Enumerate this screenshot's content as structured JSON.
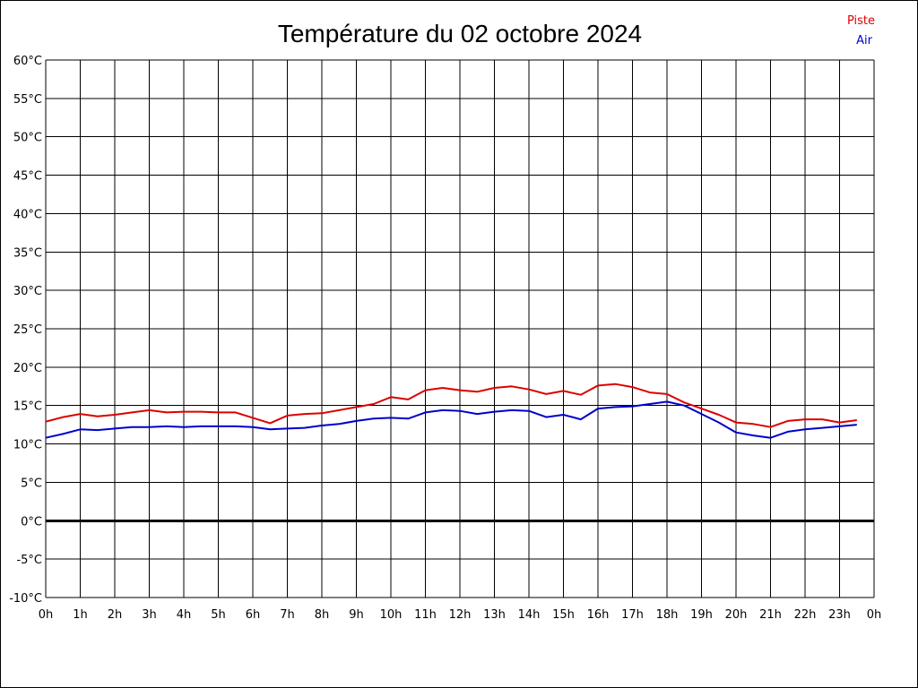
{
  "chart_data": {
    "type": "line",
    "title": "Température du 02 octobre 2024",
    "xlabel": "",
    "ylabel": "",
    "x_ticks": [
      "0h",
      "1h",
      "2h",
      "3h",
      "4h",
      "5h",
      "6h",
      "7h",
      "8h",
      "9h",
      "10h",
      "11h",
      "12h",
      "13h",
      "14h",
      "15h",
      "16h",
      "17h",
      "18h",
      "19h",
      "20h",
      "21h",
      "22h",
      "23h",
      "0h"
    ],
    "y_ticks": [
      "60°C",
      "55°C",
      "50°C",
      "45°C",
      "40°C",
      "35°C",
      "30°C",
      "25°C",
      "20°C",
      "15°C",
      "10°C",
      "5°C",
      "0°C",
      "-5°C",
      "-10°C"
    ],
    "xlim": [
      0,
      24
    ],
    "ylim": [
      -10,
      60
    ],
    "grid": true,
    "legend_position": "top-right",
    "series": [
      {
        "name": "Piste",
        "color": "#dd0000",
        "x": [
          0,
          0.5,
          1,
          1.5,
          2,
          2.5,
          3,
          3.5,
          4,
          4.5,
          5,
          5.5,
          6,
          6.5,
          7,
          7.5,
          8,
          8.5,
          9,
          9.5,
          10,
          10.5,
          11,
          11.5,
          12,
          12.5,
          13,
          13.5,
          14,
          14.5,
          15,
          15.5,
          16,
          16.5,
          17,
          17.5,
          18,
          18.5,
          19,
          19.5,
          20,
          20.5,
          21,
          21.5,
          22,
          22.5,
          23,
          23.5
        ],
        "values": [
          12.9,
          13.5,
          13.9,
          13.6,
          13.8,
          14.1,
          14.4,
          14.1,
          14.2,
          14.2,
          14.1,
          14.1,
          13.4,
          12.7,
          13.7,
          13.9,
          14.0,
          14.4,
          14.8,
          15.2,
          16.1,
          15.8,
          17.0,
          17.3,
          17.0,
          16.8,
          17.3,
          17.5,
          17.1,
          16.5,
          16.9,
          16.4,
          17.6,
          17.8,
          17.4,
          16.7,
          16.5,
          15.4,
          14.6,
          13.8,
          12.8,
          12.6,
          12.2,
          13.0,
          13.2,
          13.2,
          12.8,
          13.1
        ]
      },
      {
        "name": "Air",
        "color": "#0000cc",
        "x": [
          0,
          0.5,
          1,
          1.5,
          2,
          2.5,
          3,
          3.5,
          4,
          4.5,
          5,
          5.5,
          6,
          6.5,
          7,
          7.5,
          8,
          8.5,
          9,
          9.5,
          10,
          10.5,
          11,
          11.5,
          12,
          12.5,
          13,
          13.5,
          14,
          14.5,
          15,
          15.5,
          16,
          16.5,
          17,
          17.5,
          18,
          18.5,
          19,
          19.5,
          20,
          20.5,
          21,
          21.5,
          22,
          22.5,
          23,
          23.5
        ],
        "values": [
          10.8,
          11.3,
          11.9,
          11.8,
          12.0,
          12.2,
          12.2,
          12.3,
          12.2,
          12.3,
          12.3,
          12.3,
          12.2,
          11.9,
          12.0,
          12.1,
          12.4,
          12.6,
          13.0,
          13.3,
          13.4,
          13.3,
          14.1,
          14.4,
          14.3,
          13.9,
          14.2,
          14.4,
          14.3,
          13.5,
          13.8,
          13.2,
          14.6,
          14.8,
          14.9,
          15.2,
          15.5,
          15.0,
          13.9,
          12.8,
          11.5,
          11.1,
          10.8,
          11.6,
          11.9,
          12.1,
          12.3,
          12.5
        ]
      }
    ]
  }
}
